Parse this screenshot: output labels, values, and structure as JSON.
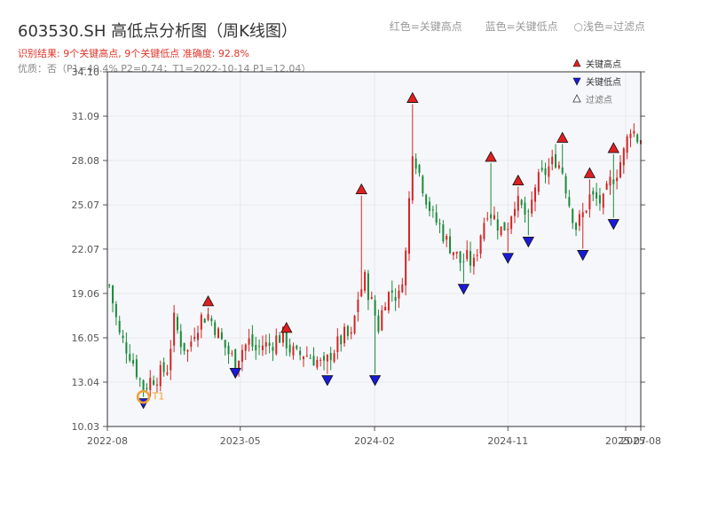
{
  "header": {
    "title": "603530.SH 高低点分析图（周K线图）",
    "subtitle": "识别结果: 9个关键高点, 9个关键低点  准确度: 92.8%",
    "extra": "优质：否（P1=40.4%  P2=0.74；T1=2022-10-14 P1=12.04）"
  },
  "top_legend": [
    "红色=关键高点",
    "蓝色=关键低点",
    "○浅色=过滤点"
  ],
  "colors": {
    "up": "#d32525",
    "down": "#1a8a3a",
    "high_marker": "#e02020",
    "low_marker": "#1a1ad8",
    "t1_marker": "#f0a030",
    "grid": "#e6e8ee",
    "plot_bg": "#f6f7fa"
  },
  "chart_data": {
    "type": "candlestick",
    "y_ticks": [
      "34.10",
      "31.09",
      "28.08",
      "25.07",
      "22.07",
      "19.06",
      "16.05",
      "13.04",
      "10.03"
    ],
    "ylim": [
      10.03,
      34.1
    ],
    "x_ticks": [
      "2022-08",
      "2023-05",
      "2024-02",
      "2024-11",
      "2025-07",
      "2025-08"
    ],
    "x_start": "2022-08-01",
    "x_end": "2025-08-01",
    "legend": [
      {
        "label": "关键高点",
        "symbol": "high-triangle"
      },
      {
        "label": "关键低点",
        "symbol": "low-triangle"
      },
      {
        "label": "过滤点",
        "symbol": "filtered-triangle"
      }
    ],
    "annotation": {
      "label": "T1",
      "date": "2022-10-14",
      "value": 12.04
    },
    "key_highs": [
      {
        "date": "2023-02-24",
        "value": 18.1
      },
      {
        "date": "2023-08-04",
        "value": 16.3
      },
      {
        "date": "2024-01-05",
        "value": 25.7
      },
      {
        "date": "2024-04-19",
        "value": 31.9
      },
      {
        "date": "2024-09-27",
        "value": 27.9
      },
      {
        "date": "2024-11-22",
        "value": 26.3
      },
      {
        "date": "2025-02-21",
        "value": 29.2
      },
      {
        "date": "2025-04-18",
        "value": 26.8
      },
      {
        "date": "2025-06-06",
        "value": 28.5
      }
    ],
    "key_lows": [
      {
        "date": "2022-10-14",
        "value": 12.04
      },
      {
        "date": "2023-04-21",
        "value": 14.1
      },
      {
        "date": "2023-10-27",
        "value": 13.6
      },
      {
        "date": "2024-02-02",
        "value": 13.6
      },
      {
        "date": "2024-08-02",
        "value": 19.8
      },
      {
        "date": "2024-11-01",
        "value": 21.9
      },
      {
        "date": "2024-12-13",
        "value": 23.0
      },
      {
        "date": "2025-04-04",
        "value": 22.1
      },
      {
        "date": "2025-06-06",
        "value": 24.2
      }
    ],
    "close_series": [
      [
        "2022-08-05",
        19.6
      ],
      [
        "2022-08-26",
        16.2
      ],
      [
        "2022-09-16",
        15.0
      ],
      [
        "2022-09-30",
        13.8
      ],
      [
        "2022-10-14",
        12.6
      ],
      [
        "2022-10-28",
        13.2
      ],
      [
        "2022-11-18",
        13.6
      ],
      [
        "2022-12-02",
        14.0
      ],
      [
        "2022-12-16",
        17.2
      ],
      [
        "2022-12-30",
        15.8
      ],
      [
        "2023-01-13",
        15.1
      ],
      [
        "2023-01-27",
        16.6
      ],
      [
        "2023-02-10",
        17.4
      ],
      [
        "2023-02-24",
        17.6
      ],
      [
        "2023-03-10",
        16.8
      ],
      [
        "2023-03-24",
        15.8
      ],
      [
        "2023-04-07",
        15.0
      ],
      [
        "2023-04-21",
        14.5
      ],
      [
        "2023-05-05",
        15.3
      ],
      [
        "2023-05-19",
        15.8
      ],
      [
        "2023-06-02",
        15.2
      ],
      [
        "2023-06-16",
        15.6
      ],
      [
        "2023-06-30",
        15.5
      ],
      [
        "2023-07-14",
        16.0
      ],
      [
        "2023-07-28",
        16.2
      ],
      [
        "2023-08-11",
        15.3
      ],
      [
        "2023-08-25",
        14.8
      ],
      [
        "2023-09-08",
        15.0
      ],
      [
        "2023-09-22",
        14.8
      ],
      [
        "2023-10-06",
        14.5
      ],
      [
        "2023-10-20",
        14.0
      ],
      [
        "2023-11-03",
        15.0
      ],
      [
        "2023-11-17",
        15.6
      ],
      [
        "2023-12-01",
        16.2
      ],
      [
        "2023-12-15",
        16.0
      ],
      [
        "2023-12-29",
        18.8
      ],
      [
        "2024-01-12",
        20.0
      ],
      [
        "2024-01-26",
        18.4
      ],
      [
        "2024-02-09",
        16.8
      ],
      [
        "2024-02-23",
        18.8
      ],
      [
        "2024-03-08",
        19.2
      ],
      [
        "2024-03-22",
        18.8
      ],
      [
        "2024-04-05",
        21.8
      ],
      [
        "2024-04-19",
        29.0
      ],
      [
        "2024-05-03",
        27.2
      ],
      [
        "2024-05-17",
        25.6
      ],
      [
        "2024-05-31",
        24.2
      ],
      [
        "2024-06-14",
        23.6
      ],
      [
        "2024-06-28",
        22.6
      ],
      [
        "2024-07-12",
        22.0
      ],
      [
        "2024-07-26",
        21.2
      ],
      [
        "2024-08-09",
        21.4
      ],
      [
        "2024-08-23",
        21.0
      ],
      [
        "2024-09-06",
        23.2
      ],
      [
        "2024-09-20",
        24.8
      ],
      [
        "2024-10-04",
        24.2
      ],
      [
        "2024-10-18",
        23.4
      ],
      [
        "2024-11-01",
        23.8
      ],
      [
        "2024-11-15",
        25.4
      ],
      [
        "2024-11-29",
        24.8
      ],
      [
        "2024-12-13",
        24.0
      ],
      [
        "2024-12-27",
        26.4
      ],
      [
        "2025-01-10",
        27.0
      ],
      [
        "2025-01-24",
        27.6
      ],
      [
        "2025-02-07",
        28.2
      ],
      [
        "2025-02-21",
        27.4
      ],
      [
        "2025-03-07",
        25.2
      ],
      [
        "2025-03-21",
        23.6
      ],
      [
        "2025-04-04",
        24.4
      ],
      [
        "2025-04-18",
        25.6
      ],
      [
        "2025-05-02",
        25.4
      ],
      [
        "2025-05-16",
        25.2
      ],
      [
        "2025-05-30",
        26.6
      ],
      [
        "2025-06-13",
        27.4
      ],
      [
        "2025-06-27",
        28.6
      ],
      [
        "2025-07-11",
        30.4
      ],
      [
        "2025-07-25",
        29.6
      ]
    ]
  }
}
